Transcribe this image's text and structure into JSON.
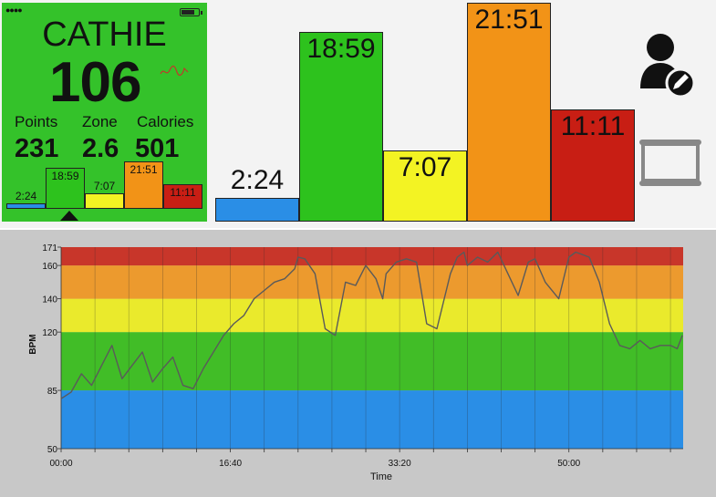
{
  "device": {
    "battery_level": 0.85
  },
  "summary": {
    "name": "CATHIE",
    "heart_rate": "106",
    "stats": [
      {
        "label": "Points",
        "value": "231"
      },
      {
        "label": "Zone",
        "value": "2.6"
      },
      {
        "label": "Calories",
        "value": "501"
      }
    ]
  },
  "zones": [
    {
      "label": "2:24",
      "minutes": 2.4,
      "color": "#2a8ee6",
      "selected": false
    },
    {
      "label": "18:59",
      "minutes": 18.98,
      "color": "#2dc21d",
      "selected": true
    },
    {
      "label": "7:07",
      "minutes": 7.12,
      "color": "#f3f323",
      "selected": false
    },
    {
      "label": "21:51",
      "minutes": 21.85,
      "color": "#f29317",
      "selected": false
    },
    {
      "label": "11:11",
      "minutes": 11.18,
      "color": "#c81e14",
      "selected": false
    }
  ],
  "icons": {
    "user": "edit-user-icon",
    "screen": "laptop-icon"
  },
  "chart_data": {
    "type": "line",
    "xlabel": "Time",
    "ylabel": "BPM",
    "xlim": [
      0,
      3675
    ],
    "ylim": [
      50,
      171
    ],
    "x_ticks": [
      {
        "value": 0,
        "label": "00:00"
      },
      {
        "value": 1000,
        "label": "16:40"
      },
      {
        "value": 2000,
        "label": "33:20"
      },
      {
        "value": 3000,
        "label": "50:00"
      }
    ],
    "y_ticks": [
      50,
      85,
      120,
      140,
      160,
      171
    ],
    "zone_bands": [
      {
        "from": 50,
        "to": 85,
        "color": "#2a8ee6"
      },
      {
        "from": 85,
        "to": 120,
        "color": "#41bd27"
      },
      {
        "from": 120,
        "to": 140,
        "color": "#eaea2c"
      },
      {
        "from": 140,
        "to": 160,
        "color": "#ec9a2e"
      },
      {
        "from": 160,
        "to": 171,
        "color": "#c8362a"
      }
    ],
    "series": [
      {
        "color": "#5a5a5a",
        "x": [
          0,
          60,
          120,
          180,
          240,
          300,
          360,
          420,
          480,
          540,
          600,
          660,
          720,
          780,
          840,
          900,
          960,
          1020,
          1080,
          1140,
          1200,
          1260,
          1320,
          1380,
          1400,
          1440,
          1500,
          1560,
          1620,
          1680,
          1740,
          1800,
          1860,
          1900,
          1920,
          1980,
          2040,
          2100,
          2160,
          2220,
          2300,
          2340,
          2380,
          2400,
          2460,
          2520,
          2580,
          2640,
          2700,
          2760,
          2800,
          2860,
          2940,
          3000,
          3040,
          3120,
          3180,
          3240,
          3300,
          3360,
          3420,
          3480,
          3540,
          3600,
          3640,
          3670
        ],
        "y": [
          80,
          84,
          95,
          88,
          100,
          112,
          92,
          100,
          108,
          90,
          98,
          105,
          88,
          86,
          98,
          108,
          118,
          125,
          130,
          140,
          145,
          150,
          152,
          158,
          165,
          164,
          155,
          122,
          118,
          150,
          148,
          160,
          152,
          140,
          155,
          162,
          164,
          162,
          125,
          122,
          155,
          165,
          168,
          160,
          165,
          162,
          168,
          155,
          142,
          162,
          164,
          150,
          140,
          165,
          168,
          165,
          150,
          125,
          112,
          110,
          115,
          110,
          112,
          112,
          110,
          118
        ]
      }
    ]
  }
}
